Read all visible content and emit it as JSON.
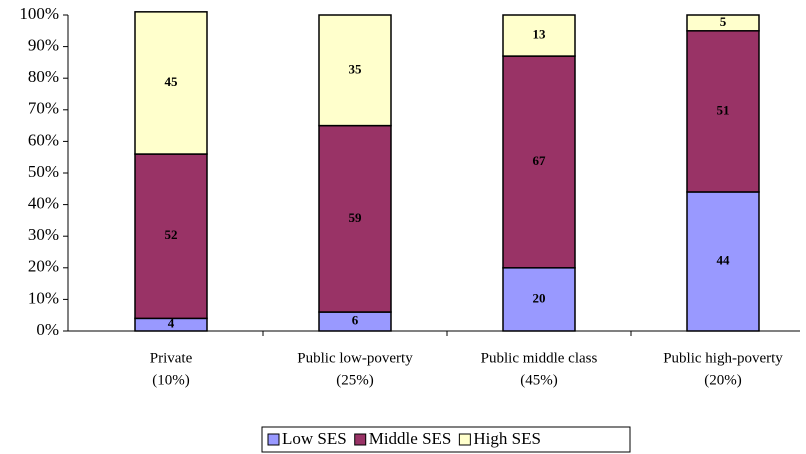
{
  "chart_data": {
    "type": "stacked-bar",
    "categories": [
      [
        "Private",
        "(10%)"
      ],
      [
        "Public low-poverty",
        "(25%)"
      ],
      [
        "Public middle class",
        "(45%)"
      ],
      [
        "Public high-poverty",
        "(20%)"
      ]
    ],
    "series": [
      {
        "name": "Low SES",
        "color": "#9999ff",
        "values": [
          4,
          6,
          20,
          44
        ]
      },
      {
        "name": "Middle SES",
        "color": "#993366",
        "values": [
          52,
          59,
          67,
          51
        ]
      },
      {
        "name": "High SES",
        "color": "#ffffcc",
        "values": [
          45,
          35,
          13,
          5
        ]
      }
    ],
    "ylim": [
      0,
      100
    ],
    "yticks": [
      {
        "value": 0,
        "label": "0%"
      },
      {
        "value": 10,
        "label": "10%"
      },
      {
        "value": 20,
        "label": "20%"
      },
      {
        "value": 30,
        "label": "30%"
      },
      {
        "value": 40,
        "label": "40%"
      },
      {
        "value": 50,
        "label": "50%"
      },
      {
        "value": 60,
        "label": "60%"
      },
      {
        "value": 70,
        "label": "70%"
      },
      {
        "value": 80,
        "label": "80%"
      },
      {
        "value": 90,
        "label": "90%"
      },
      {
        "value": 100,
        "label": "100%"
      }
    ],
    "legend": "bottom"
  }
}
